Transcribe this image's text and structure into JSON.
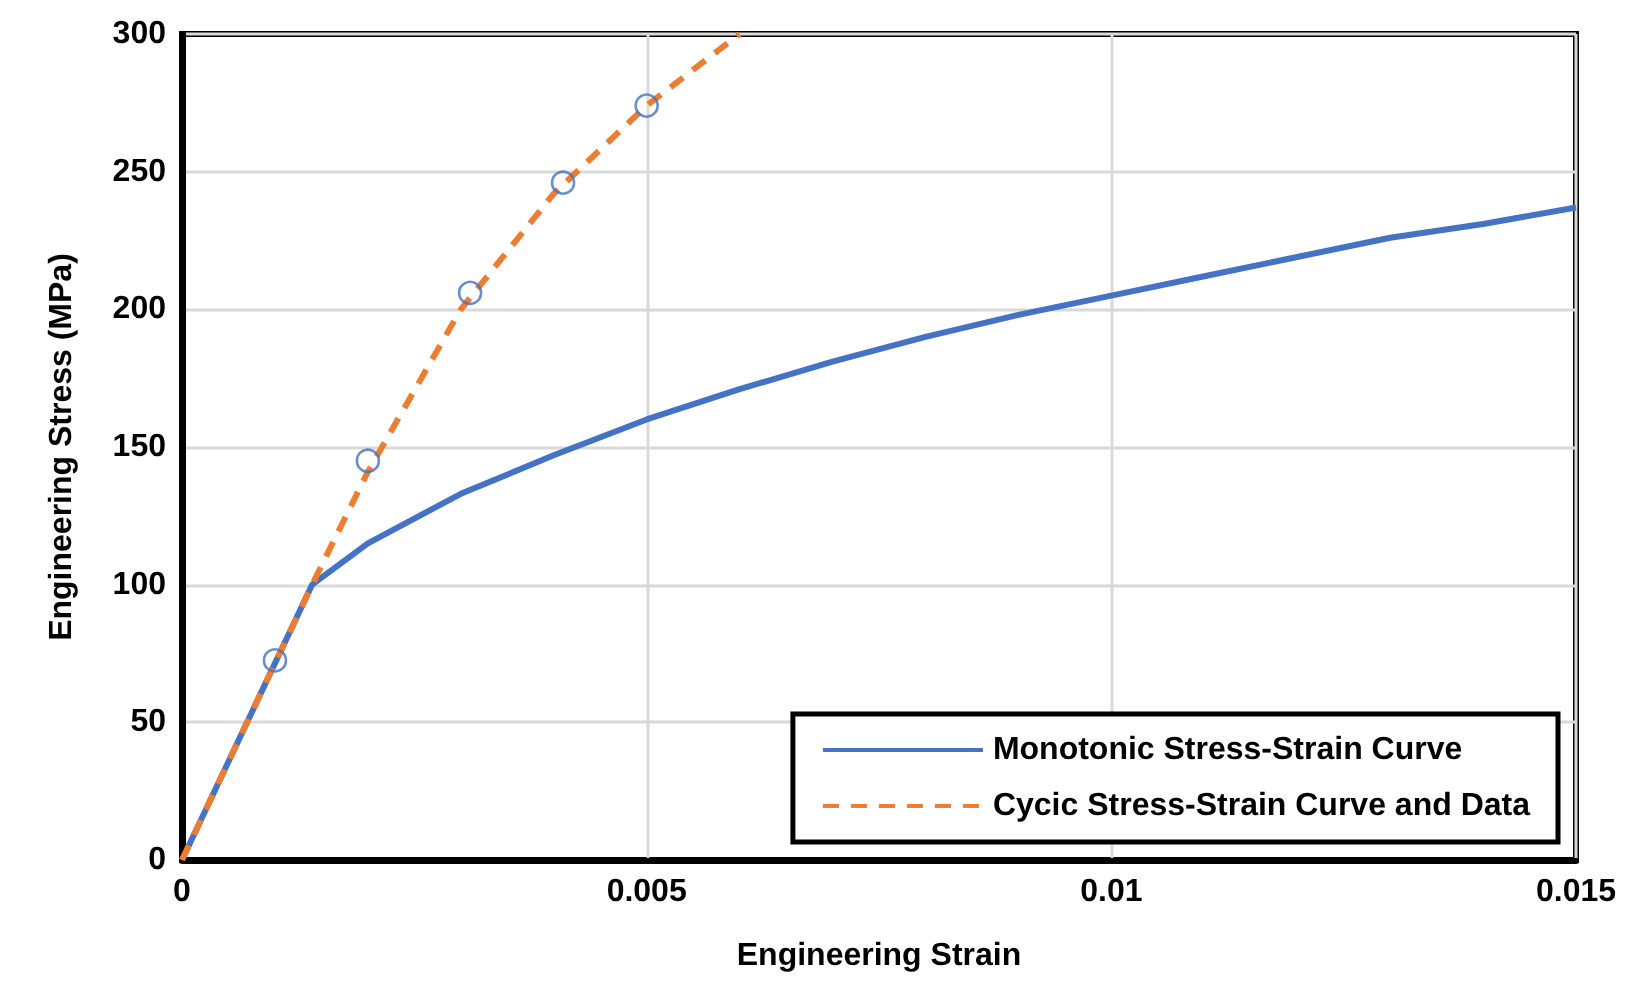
{
  "chart_data": {
    "type": "line",
    "xlabel": "Engineering Strain",
    "ylabel": "Engineering Stress (MPa)",
    "xlim": [
      0,
      0.015
    ],
    "xticks": [
      0,
      0.005,
      0.01,
      0.015
    ],
    "ylim": [
      0,
      300
    ],
    "yticks": [
      0,
      50,
      100,
      150,
      200,
      250,
      300
    ],
    "grid": true,
    "legend": "bottom right",
    "marker": "none",
    "series": [
      {
        "name": "Monotonic Stress-Strain Curve",
        "color": "#4472c4",
        "line_style": "solid",
        "x": [
          0,
          0.0014,
          0.002,
          0.003,
          0.004,
          0.005,
          0.006,
          0.007,
          0.008,
          0.009,
          0.01,
          0.011,
          0.012,
          0.013,
          0.014,
          0.015
        ],
        "values": [
          0,
          100,
          115,
          133,
          147,
          160,
          171,
          181,
          190,
          198,
          205,
          212,
          219,
          226,
          231,
          237
        ]
      },
      {
        "name": "Cycic Stress-Strain Curve and Data",
        "color": "#ed7d31",
        "line_style": "dashed",
        "x": [
          0,
          0.0014,
          0.002,
          0.003,
          0.004,
          0.005,
          0.006
        ],
        "values": [
          0,
          100,
          141,
          200,
          242,
          274,
          300
        ]
      },
      {
        "type": "scatter",
        "color": "#4472c4",
        "marker": "circle",
        "x": [
          0.001,
          0.002,
          0.0031,
          0.0041,
          0.005
        ],
        "values": [
          72.5,
          145,
          206,
          246,
          274
        ]
      }
    ]
  }
}
